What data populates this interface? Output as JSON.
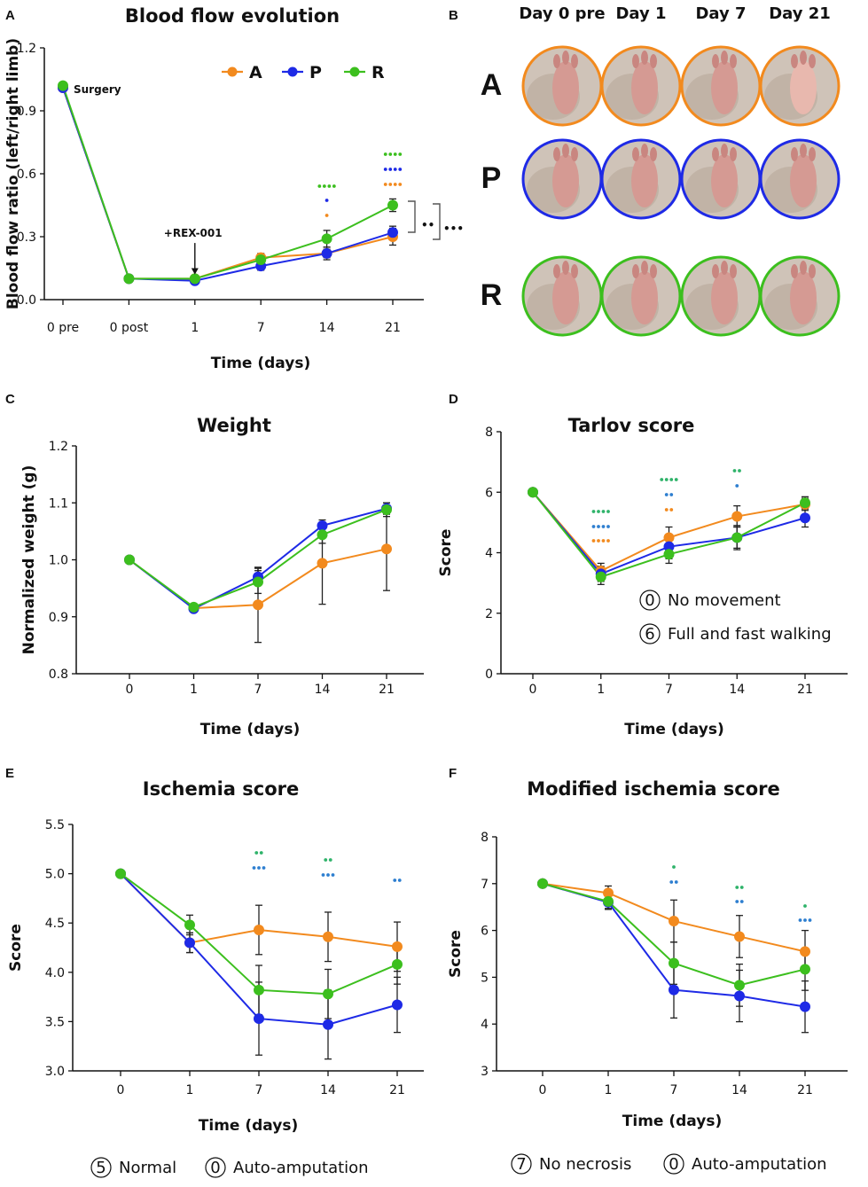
{
  "colors": {
    "A": "#f28a1e",
    "P": "#1e2ae6",
    "R": "#3cbf1e",
    "axis": "#111111",
    "err": "#222222",
    "sigP": "#2e7fd0",
    "sigR": "#2fb36a"
  },
  "panel_labels": [
    "A",
    "B",
    "C",
    "D",
    "E",
    "F"
  ],
  "photos": {
    "columns": [
      "Day 0 pre",
      "Day 1",
      "Day 7",
      "Day 21"
    ],
    "rows": [
      "A",
      "P",
      "R"
    ]
  },
  "chart_data": [
    {
      "id": "A",
      "type": "line",
      "title": "Blood flow evolution",
      "xlabel": "Time (days)",
      "ylabel": "Blood flow ratio (left/right limb)",
      "categories": [
        "0 pre",
        "0 post",
        "1",
        "7",
        "14",
        "21"
      ],
      "ylim": [
        0.0,
        1.2
      ],
      "yticks": [
        "0.0",
        "0.3",
        "0.6",
        "0.9",
        "1.2"
      ],
      "legend": [
        "A",
        "P",
        "R"
      ],
      "series": [
        {
          "name": "A",
          "values": [
            1.01,
            0.1,
            0.1,
            0.2,
            0.22,
            0.3
          ],
          "err": [
            0.01,
            0.01,
            0.01,
            0.02,
            0.02,
            0.04
          ]
        },
        {
          "name": "P",
          "values": [
            1.01,
            0.1,
            0.09,
            0.16,
            0.22,
            0.32
          ],
          "err": [
            0.01,
            0.01,
            0.01,
            0.02,
            0.03,
            0.03
          ]
        },
        {
          "name": "R",
          "values": [
            1.02,
            0.1,
            0.1,
            0.19,
            0.29,
            0.45
          ],
          "err": [
            0.01,
            0.01,
            0.01,
            0.02,
            0.04,
            0.03
          ]
        }
      ],
      "annotations": {
        "surgery": "Surgery",
        "treatment": "+REX-001",
        "bracket_inner": "••",
        "bracket_outer": "•••"
      }
    },
    {
      "id": "C",
      "type": "line",
      "title": "Weight",
      "xlabel": "Time (days)",
      "ylabel": "Normalized weight (g)",
      "categories": [
        "0",
        "1",
        "7",
        "14",
        "21"
      ],
      "ylim": [
        0.8,
        1.2
      ],
      "yticks": [
        "0.8",
        "0.9",
        "1.0",
        "1.1",
        "1.2"
      ],
      "series": [
        {
          "name": "A",
          "values": [
            1.0,
            0.915,
            0.921,
            0.994,
            1.019
          ],
          "err": [
            0.0,
            0.006,
            0.066,
            0.072,
            0.073
          ]
        },
        {
          "name": "P",
          "values": [
            1.0,
            0.914,
            0.97,
            1.06,
            1.09
          ],
          "err": [
            0.0,
            0.005,
            0.015,
            0.01,
            0.01
          ]
        },
        {
          "name": "R",
          "values": [
            1.0,
            0.917,
            0.961,
            1.044,
            1.088
          ],
          "err": [
            0.0,
            0.005,
            0.02,
            0.015,
            0.012
          ]
        }
      ]
    },
    {
      "id": "D",
      "type": "line",
      "title": "Tarlov score",
      "xlabel": "Time (days)",
      "ylabel": "Score",
      "categories": [
        "0",
        "1",
        "7",
        "14",
        "21"
      ],
      "ylim": [
        0,
        8
      ],
      "yticks": [
        "0",
        "2",
        "4",
        "6",
        "8"
      ],
      "series": [
        {
          "name": "A",
          "values": [
            6.0,
            3.4,
            4.5,
            5.2,
            5.6
          ],
          "err": [
            0.0,
            0.25,
            0.35,
            0.35,
            0.2
          ]
        },
        {
          "name": "P",
          "values": [
            6.0,
            3.3,
            4.2,
            4.5,
            5.15
          ],
          "err": [
            0.0,
            0.25,
            0.4,
            0.4,
            0.3
          ]
        },
        {
          "name": "R",
          "values": [
            6.0,
            3.2,
            3.95,
            4.5,
            5.65
          ],
          "err": [
            0.0,
            0.25,
            0.3,
            0.35,
            0.2
          ]
        }
      ],
      "notes": [
        {
          "symbol": "0",
          "text": "No movement"
        },
        {
          "symbol": "6",
          "text": "Full and fast walking"
        }
      ]
    },
    {
      "id": "E",
      "type": "line",
      "title": "Ischemia score",
      "xlabel": "Time (days)",
      "ylabel": "Score",
      "categories": [
        "0",
        "1",
        "7",
        "14",
        "21"
      ],
      "ylim": [
        3.0,
        5.5
      ],
      "yticks": [
        "3.0",
        "3.5",
        "4.0",
        "4.5",
        "5.0",
        "5.5"
      ],
      "series": [
        {
          "name": "A",
          "values": [
            5.0,
            4.3,
            4.43,
            4.36,
            4.26
          ],
          "err": [
            0.0,
            0.1,
            0.25,
            0.25,
            0.25
          ]
        },
        {
          "name": "P",
          "values": [
            5.0,
            4.3,
            3.53,
            3.47,
            3.67
          ],
          "err": [
            0.0,
            0.1,
            0.37,
            0.35,
            0.28
          ]
        },
        {
          "name": "R",
          "values": [
            5.0,
            4.48,
            3.82,
            3.78,
            4.08
          ],
          "err": [
            0.0,
            0.1,
            0.25,
            0.25,
            0.2
          ]
        }
      ],
      "notes": [
        {
          "symbol": "5",
          "text": "Normal"
        },
        {
          "symbol": "0",
          "text": "Auto-amputation"
        }
      ]
    },
    {
      "id": "F",
      "type": "line",
      "title": "Modified ischemia score",
      "xlabel": "Time (days)",
      "ylabel": "Score",
      "categories": [
        "0",
        "1",
        "7",
        "14",
        "21"
      ],
      "ylim": [
        3,
        8
      ],
      "yticks": [
        "3",
        "4",
        "5",
        "6",
        "7",
        "8"
      ],
      "series": [
        {
          "name": "A",
          "values": [
            7.0,
            6.8,
            6.2,
            5.87,
            5.55
          ],
          "err": [
            0.0,
            0.15,
            0.45,
            0.45,
            0.45
          ]
        },
        {
          "name": "P",
          "values": [
            7.0,
            6.6,
            4.73,
            4.6,
            4.37
          ],
          "err": [
            0.0,
            0.15,
            0.6,
            0.55,
            0.55
          ]
        },
        {
          "name": "R",
          "values": [
            7.0,
            6.62,
            5.3,
            4.83,
            5.17
          ],
          "err": [
            0.0,
            0.15,
            0.45,
            0.45,
            0.45
          ]
        }
      ],
      "notes": [
        {
          "symbol": "7",
          "text": "No necrosis"
        },
        {
          "symbol": "0",
          "text": "Auto-amputation"
        }
      ]
    }
  ]
}
